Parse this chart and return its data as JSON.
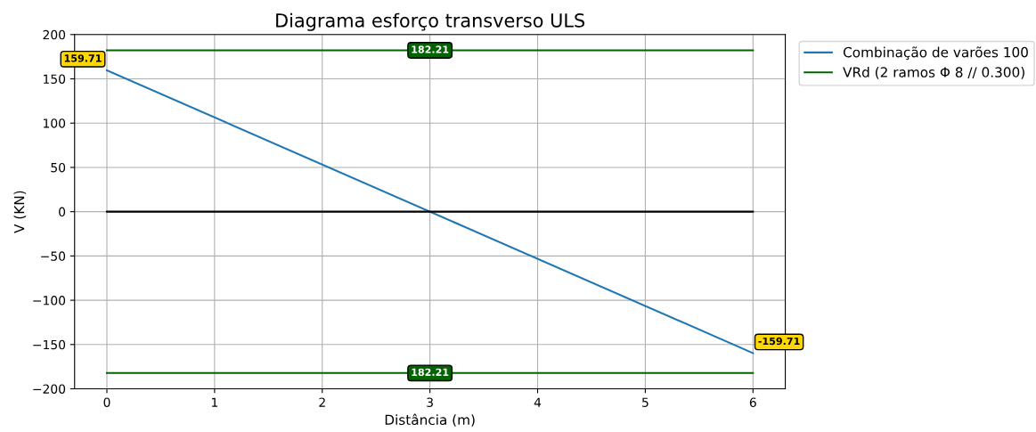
{
  "chart_data": {
    "type": "line",
    "title": "Diagrama esforço transverso ULS",
    "xlabel": "Distância (m)",
    "ylabel": "V (KN)",
    "x": [
      0,
      6
    ],
    "series": [
      {
        "name": "Combinação de varões 100",
        "color": "#1f77b4",
        "values": [
          159.71,
          -159.71
        ]
      },
      {
        "name": "VRd (2 ramos Φ 8 // 0.300)",
        "color": "#006400",
        "values": [
          182.21,
          182.21
        ]
      },
      {
        "color": "#006400",
        "values": [
          -182.21,
          -182.21
        ]
      },
      {
        "color": "#000000",
        "values": [
          0,
          0
        ]
      }
    ],
    "annotations": [
      {
        "text": "159.71",
        "x": 0,
        "y": 159.71
      },
      {
        "text": "-159.71",
        "x": 6,
        "y": -159.71
      },
      {
        "text": "182.21",
        "x": 3,
        "y": 182.21
      },
      {
        "text": "182.21",
        "x": 3,
        "y": -182.21
      }
    ],
    "xlim": [
      -0.3,
      6.3
    ],
    "xticks": [
      0,
      1,
      2,
      3,
      4,
      5,
      6
    ],
    "ylim": [
      -200,
      200
    ],
    "yticks": [
      -200,
      -150,
      -100,
      -50,
      0,
      50,
      100,
      150,
      200
    ],
    "grid": true,
    "legend": "top right",
    "marker": "none",
    "line_style": "solid"
  }
}
